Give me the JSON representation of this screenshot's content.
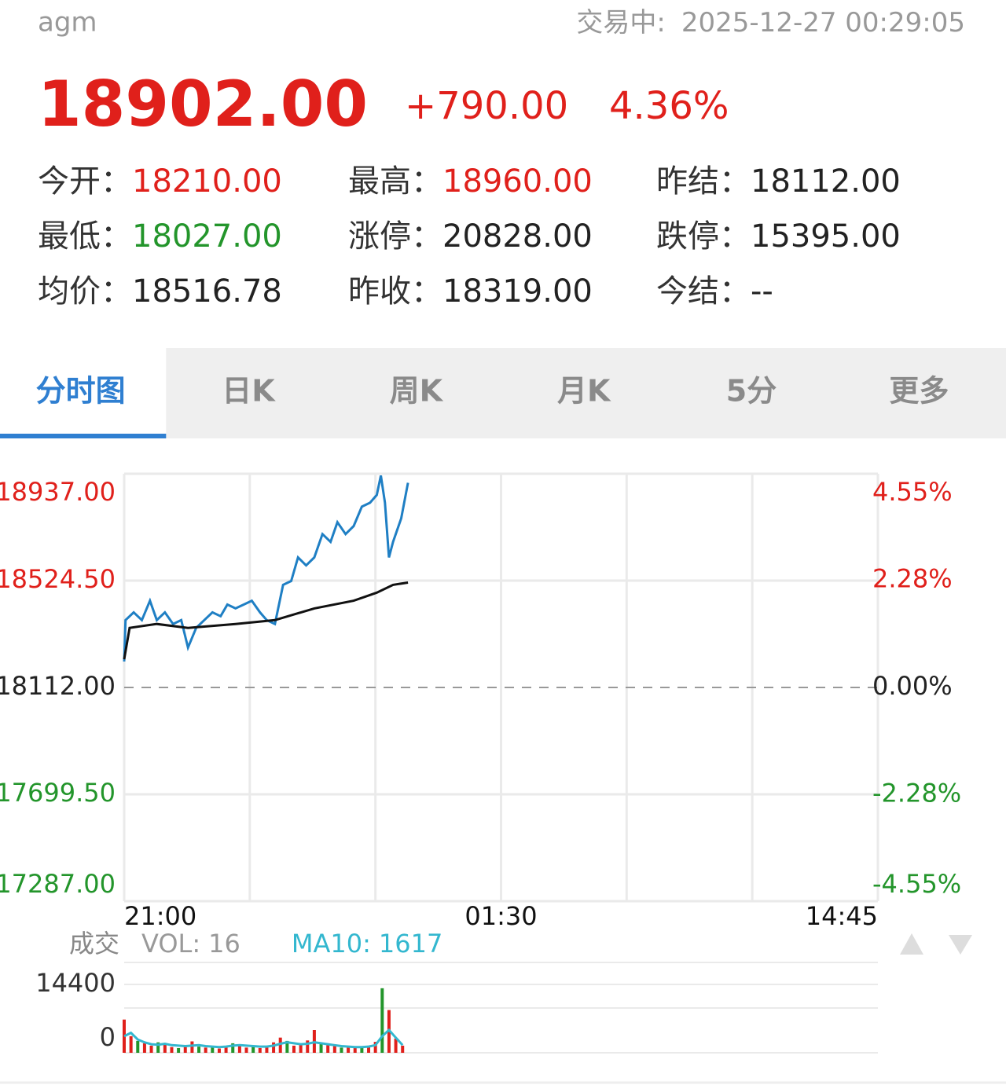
{
  "header": {
    "symbol": "agm",
    "status": "交易中:",
    "time": "2025-12-27 00:29:05"
  },
  "quote": {
    "price": "18902.00",
    "change": "+790.00",
    "change_pct": "4.36%",
    "tone": "up",
    "stats": [
      [
        {
          "label": "今开：",
          "value": "18210.00",
          "tone": "up"
        },
        {
          "label": "最高：",
          "value": "18960.00",
          "tone": "up"
        },
        {
          "label": "昨结：",
          "value": "18112.00",
          "tone": "flat"
        }
      ],
      [
        {
          "label": "最低：",
          "value": "18027.00",
          "tone": "down"
        },
        {
          "label": "涨停：",
          "value": "20828.00",
          "tone": "flat"
        },
        {
          "label": "跌停：",
          "value": "15395.00",
          "tone": "flat"
        }
      ],
      [
        {
          "label": "均价：",
          "value": "18516.78",
          "tone": "flat"
        },
        {
          "label": "昨收：",
          "value": "18319.00",
          "tone": "flat"
        },
        {
          "label": "今结：",
          "value": "--",
          "tone": "flat"
        }
      ]
    ]
  },
  "tabs": {
    "items": [
      "分时图",
      "日K",
      "周K",
      "月K",
      "5分",
      "更多"
    ],
    "active": 0
  },
  "colors": {
    "up": "#e0201b",
    "down": "#23952b",
    "flat": "#222222"
  },
  "chart_data": [
    {
      "type": "line",
      "xlim": [
        0,
        555
      ],
      "xticks": [
        {
          "value": 0,
          "label": "21:00"
        },
        {
          "value": 277.5,
          "label": "01:30"
        },
        {
          "value": 555,
          "label": "14:45"
        }
      ],
      "ylim": [
        17287,
        18937
      ],
      "yticks": [
        {
          "value": 18937,
          "label": "18937.00"
        },
        {
          "value": 18524.5,
          "label": "18524.50"
        },
        {
          "value": 18112,
          "label": "18112.00"
        },
        {
          "value": 17699.5,
          "label": "17699.50"
        },
        {
          "value": 17287,
          "label": "17287.00"
        }
      ],
      "base": 18112,
      "y2lim": [
        -4.55,
        4.55
      ],
      "y2ticks": [
        {
          "value": 4.55,
          "label": "4.55%"
        },
        {
          "value": 2.28,
          "label": "2.28%"
        },
        {
          "value": 0,
          "label": "0.00%"
        },
        {
          "value": -2.28,
          "label": "-2.28%"
        },
        {
          "value": -4.55,
          "label": "-4.55%"
        }
      ],
      "grid": true,
      "series": [
        {
          "color": "#1f7fc4",
          "x": [
            0,
            1,
            7,
            13,
            19,
            24,
            30,
            36,
            42,
            47,
            53,
            59,
            65,
            71,
            76,
            82,
            88,
            94,
            100,
            105,
            111,
            117,
            123,
            128,
            134,
            140,
            146,
            152,
            157,
            163,
            169,
            175,
            181,
            186,
            189,
            192,
            195,
            198,
            204,
            209
          ],
          "values": [
            18212,
            18372,
            18402,
            18372,
            18447,
            18372,
            18402,
            18357,
            18372,
            18266,
            18342,
            18372,
            18402,
            18387,
            18432,
            18417,
            18432,
            18447,
            18402,
            18372,
            18357,
            18508,
            18523,
            18614,
            18583,
            18614,
            18704,
            18674,
            18750,
            18704,
            18735,
            18810,
            18825,
            18855,
            18930,
            18825,
            18614,
            18674,
            18765,
            18902
          ]
        },
        {
          "color": "#111111",
          "x": [
            0,
            4,
            24,
            47,
            82,
            111,
            140,
            169,
            186,
            198,
            209
          ],
          "values": [
            18221,
            18342,
            18357,
            18342,
            18357,
            18372,
            18417,
            18447,
            18478,
            18508,
            18517
          ]
        }
      ]
    },
    {
      "type": "bar",
      "label": "成交",
      "vol_label": "VOL:",
      "vol_value": 16,
      "ma_label": "MA10:",
      "ma_value": 1617,
      "xlim": [
        0,
        555
      ],
      "ylim": [
        0,
        14400
      ],
      "yticks": [
        0,
        14400
      ],
      "x": [
        0,
        5,
        10,
        15,
        20,
        25,
        30,
        35,
        40,
        45,
        50,
        55,
        60,
        65,
        70,
        75,
        80,
        85,
        90,
        95,
        100,
        105,
        110,
        115,
        120,
        125,
        130,
        135,
        140,
        145,
        150,
        155,
        160,
        165,
        170,
        175,
        180,
        185,
        190,
        195,
        200,
        205
      ],
      "values": [
        7000,
        3500,
        2500,
        2000,
        1500,
        2200,
        1800,
        1200,
        1000,
        1500,
        2400,
        1300,
        1100,
        1400,
        900,
        1200,
        2000,
        1600,
        1100,
        1300,
        1000,
        1400,
        2200,
        3200,
        2500,
        1500,
        1800,
        2600,
        4800,
        1900,
        1600,
        1400,
        1100,
        1300,
        1000,
        1200,
        1500,
        2300,
        13600,
        9000,
        3000,
        1500
      ],
      "colors": [
        "#e0201b",
        "#e0201b",
        "#23952b",
        "#e0201b",
        "#e0201b",
        "#23952b",
        "#e0201b",
        "#e0201b",
        "#23952b",
        "#e0201b",
        "#e0201b",
        "#23952b",
        "#e0201b",
        "#23952b",
        "#e0201b",
        "#e0201b",
        "#23952b",
        "#e0201b",
        "#e0201b",
        "#23952b",
        "#e0201b",
        "#e0201b",
        "#e0201b",
        "#e0201b",
        "#23952b",
        "#e0201b",
        "#e0201b",
        "#e0201b",
        "#e0201b",
        "#23952b",
        "#e0201b",
        "#e0201b",
        "#23952b",
        "#e0201b",
        "#e0201b",
        "#23952b",
        "#e0201b",
        "#e0201b",
        "#23952b",
        "#e0201b",
        "#e0201b",
        "#e0201b"
      ],
      "ma10": {
        "color": "#33b7cf",
        "values": [
          3500,
          4200,
          2800,
          2200,
          1800,
          1700,
          1900,
          1600,
          1500,
          1400,
          1500,
          1600,
          1400,
          1300,
          1200,
          1300,
          1500,
          1600,
          1500,
          1400,
          1300,
          1300,
          1500,
          1900,
          2200,
          2000,
          1800,
          1900,
          2200,
          2000,
          1800,
          1600,
          1400,
          1300,
          1200,
          1200,
          1300,
          1600,
          3500,
          4800,
          3200,
          1617
        ]
      },
      "grid": true
    }
  ]
}
